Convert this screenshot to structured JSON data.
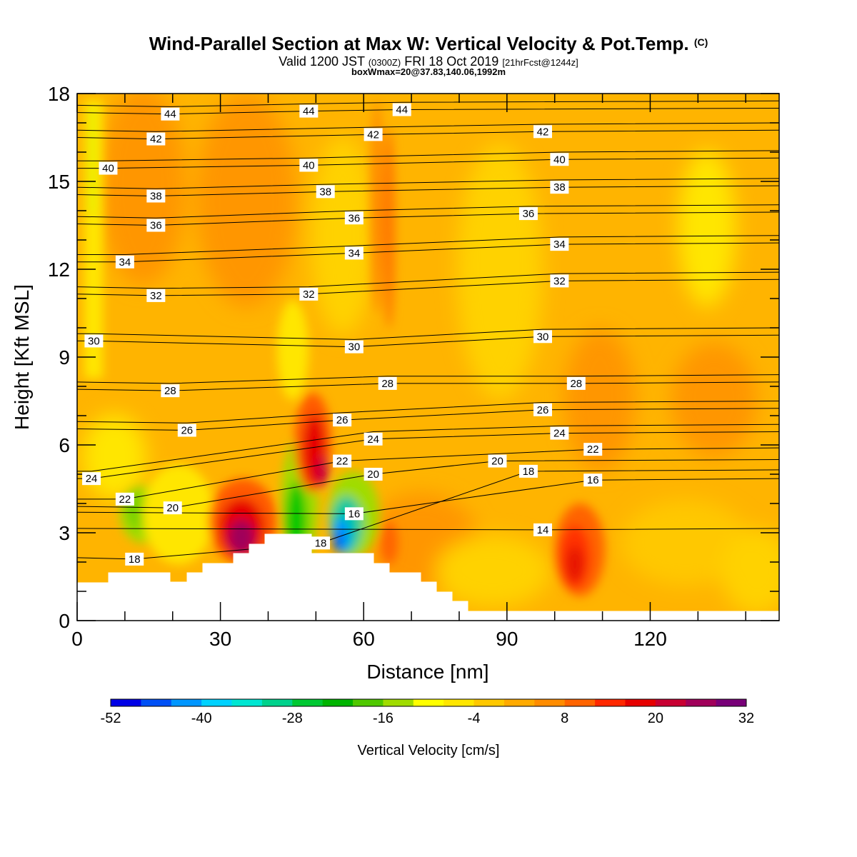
{
  "chart_data": {
    "type": "heatmap",
    "title": "Wind-Parallel Section at Max W: Vertical Velocity & Pot.Temp.",
    "title_mark": "(C)",
    "subtitle": {
      "main_a": "Valid 1200 JST",
      "small_a": "(0300Z)",
      "main_b": "FRI 18 Oct 2019",
      "small_b": "[21hrFcst@1244z]"
    },
    "subtitle2": "boxWmax=20@37.83,140.06,1992m",
    "xlabel": "Distance [nm]",
    "ylabel": "Height [Kft MSL]",
    "xlim": [
      0,
      147
    ],
    "ylim": [
      0,
      18
    ],
    "x_ticks": [
      0,
      30,
      60,
      90,
      120
    ],
    "y_ticks": [
      0,
      3,
      6,
      9,
      12,
      15,
      18
    ],
    "colorbar": {
      "label": "Vertical Velocity [cm/s]",
      "ticks": [
        -52,
        -40,
        -28,
        -16,
        -4,
        8,
        20,
        32
      ],
      "min": -52,
      "max": 32,
      "colors": [
        "#0000e6",
        "#0050f5",
        "#0096ff",
        "#00d2ff",
        "#00e6d2",
        "#00d28c",
        "#00c832",
        "#00b400",
        "#50c800",
        "#a0dc00",
        "#ffff00",
        "#ffe600",
        "#ffc800",
        "#ffaa00",
        "#ff8c00",
        "#ff6400",
        "#ff2800",
        "#e60000",
        "#c80032",
        "#a0005a",
        "#780078"
      ]
    },
    "theta_labels": [
      {
        "v": "44",
        "x": 19.5,
        "y": 17.3
      },
      {
        "v": "44",
        "x": 48.5,
        "y": 17.4
      },
      {
        "v": "44",
        "x": 68,
        "y": 17.45
      },
      {
        "v": "42",
        "x": 16.5,
        "y": 16.45
      },
      {
        "v": "42",
        "x": 62,
        "y": 16.6
      },
      {
        "v": "42",
        "x": 97.5,
        "y": 16.7
      },
      {
        "v": "40",
        "x": 6.5,
        "y": 15.45
      },
      {
        "v": "40",
        "x": 48.5,
        "y": 15.55
      },
      {
        "v": "40",
        "x": 101,
        "y": 15.75
      },
      {
        "v": "38",
        "x": 16.5,
        "y": 14.5
      },
      {
        "v": "38",
        "x": 52,
        "y": 14.65
      },
      {
        "v": "38",
        "x": 101,
        "y": 14.8
      },
      {
        "v": "36",
        "x": 16.5,
        "y": 13.5
      },
      {
        "v": "36",
        "x": 58,
        "y": 13.75
      },
      {
        "v": "36",
        "x": 94.5,
        "y": 13.9
      },
      {
        "v": "34",
        "x": 10,
        "y": 12.25
      },
      {
        "v": "34",
        "x": 58,
        "y": 12.55
      },
      {
        "v": "34",
        "x": 101,
        "y": 12.85
      },
      {
        "v": "32",
        "x": 16.5,
        "y": 11.1
      },
      {
        "v": "32",
        "x": 48.5,
        "y": 11.15
      },
      {
        "v": "32",
        "x": 101,
        "y": 11.6
      },
      {
        "v": "30",
        "x": 3.5,
        "y": 9.55
      },
      {
        "v": "30",
        "x": 58,
        "y": 9.35
      },
      {
        "v": "30",
        "x": 97.5,
        "y": 9.7
      },
      {
        "v": "28",
        "x": 19.5,
        "y": 7.85
      },
      {
        "v": "28",
        "x": 65,
        "y": 8.1
      },
      {
        "v": "28",
        "x": 104.5,
        "y": 8.1
      },
      {
        "v": "26",
        "x": 23,
        "y": 6.5
      },
      {
        "v": "26",
        "x": 55.5,
        "y": 6.85
      },
      {
        "v": "26",
        "x": 97.5,
        "y": 7.2
      },
      {
        "v": "24",
        "x": 3,
        "y": 4.85
      },
      {
        "v": "24",
        "x": 62,
        "y": 6.2
      },
      {
        "v": "24",
        "x": 101,
        "y": 6.4
      },
      {
        "v": "22",
        "x": 10,
        "y": 4.15
      },
      {
        "v": "22",
        "x": 55.5,
        "y": 5.45
      },
      {
        "v": "22",
        "x": 108,
        "y": 5.85
      },
      {
        "v": "20",
        "x": 20,
        "y": 3.85
      },
      {
        "v": "20",
        "x": 62,
        "y": 5
      },
      {
        "v": "20",
        "x": 88,
        "y": 5.45
      },
      {
        "v": "18",
        "x": 12,
        "y": 2.1
      },
      {
        "v": "18",
        "x": 51,
        "y": 2.65
      },
      {
        "v": "18",
        "x": 94.5,
        "y": 5.1
      },
      {
        "v": "16",
        "x": 58,
        "y": 3.65
      },
      {
        "v": "16",
        "x": 108,
        "y": 4.8
      },
      {
        "v": "14",
        "x": 97.5,
        "y": 3.1
      }
    ]
  }
}
